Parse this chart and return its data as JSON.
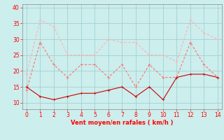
{
  "x": [
    0,
    1,
    2,
    3,
    4,
    5,
    6,
    7,
    8,
    9,
    10,
    11,
    12,
    13,
    14
  ],
  "series1": [
    19,
    36,
    34,
    25,
    25,
    25,
    30,
    29,
    29,
    25,
    25,
    23,
    36,
    32,
    30
  ],
  "series2": [
    14,
    29,
    22,
    18,
    22,
    22,
    18,
    22,
    15,
    22,
    18,
    18,
    29,
    22,
    18
  ],
  "series3": [
    15,
    12,
    11,
    12,
    13,
    13,
    14,
    15,
    12,
    15,
    11,
    18,
    19,
    19,
    18
  ],
  "color1": "#ffb0b0",
  "color2": "#ff7070",
  "color3": "#cc0000",
  "background": "#cceeed",
  "xlabel": "Vent moyen/en rafales ( km/h )",
  "ylim": [
    8,
    41
  ],
  "xlim": [
    -0.3,
    14.3
  ],
  "yticks": [
    10,
    15,
    20,
    25,
    30,
    35,
    40
  ],
  "xticks": [
    0,
    1,
    2,
    3,
    4,
    5,
    6,
    7,
    8,
    9,
    10,
    11,
    12,
    13,
    14
  ]
}
